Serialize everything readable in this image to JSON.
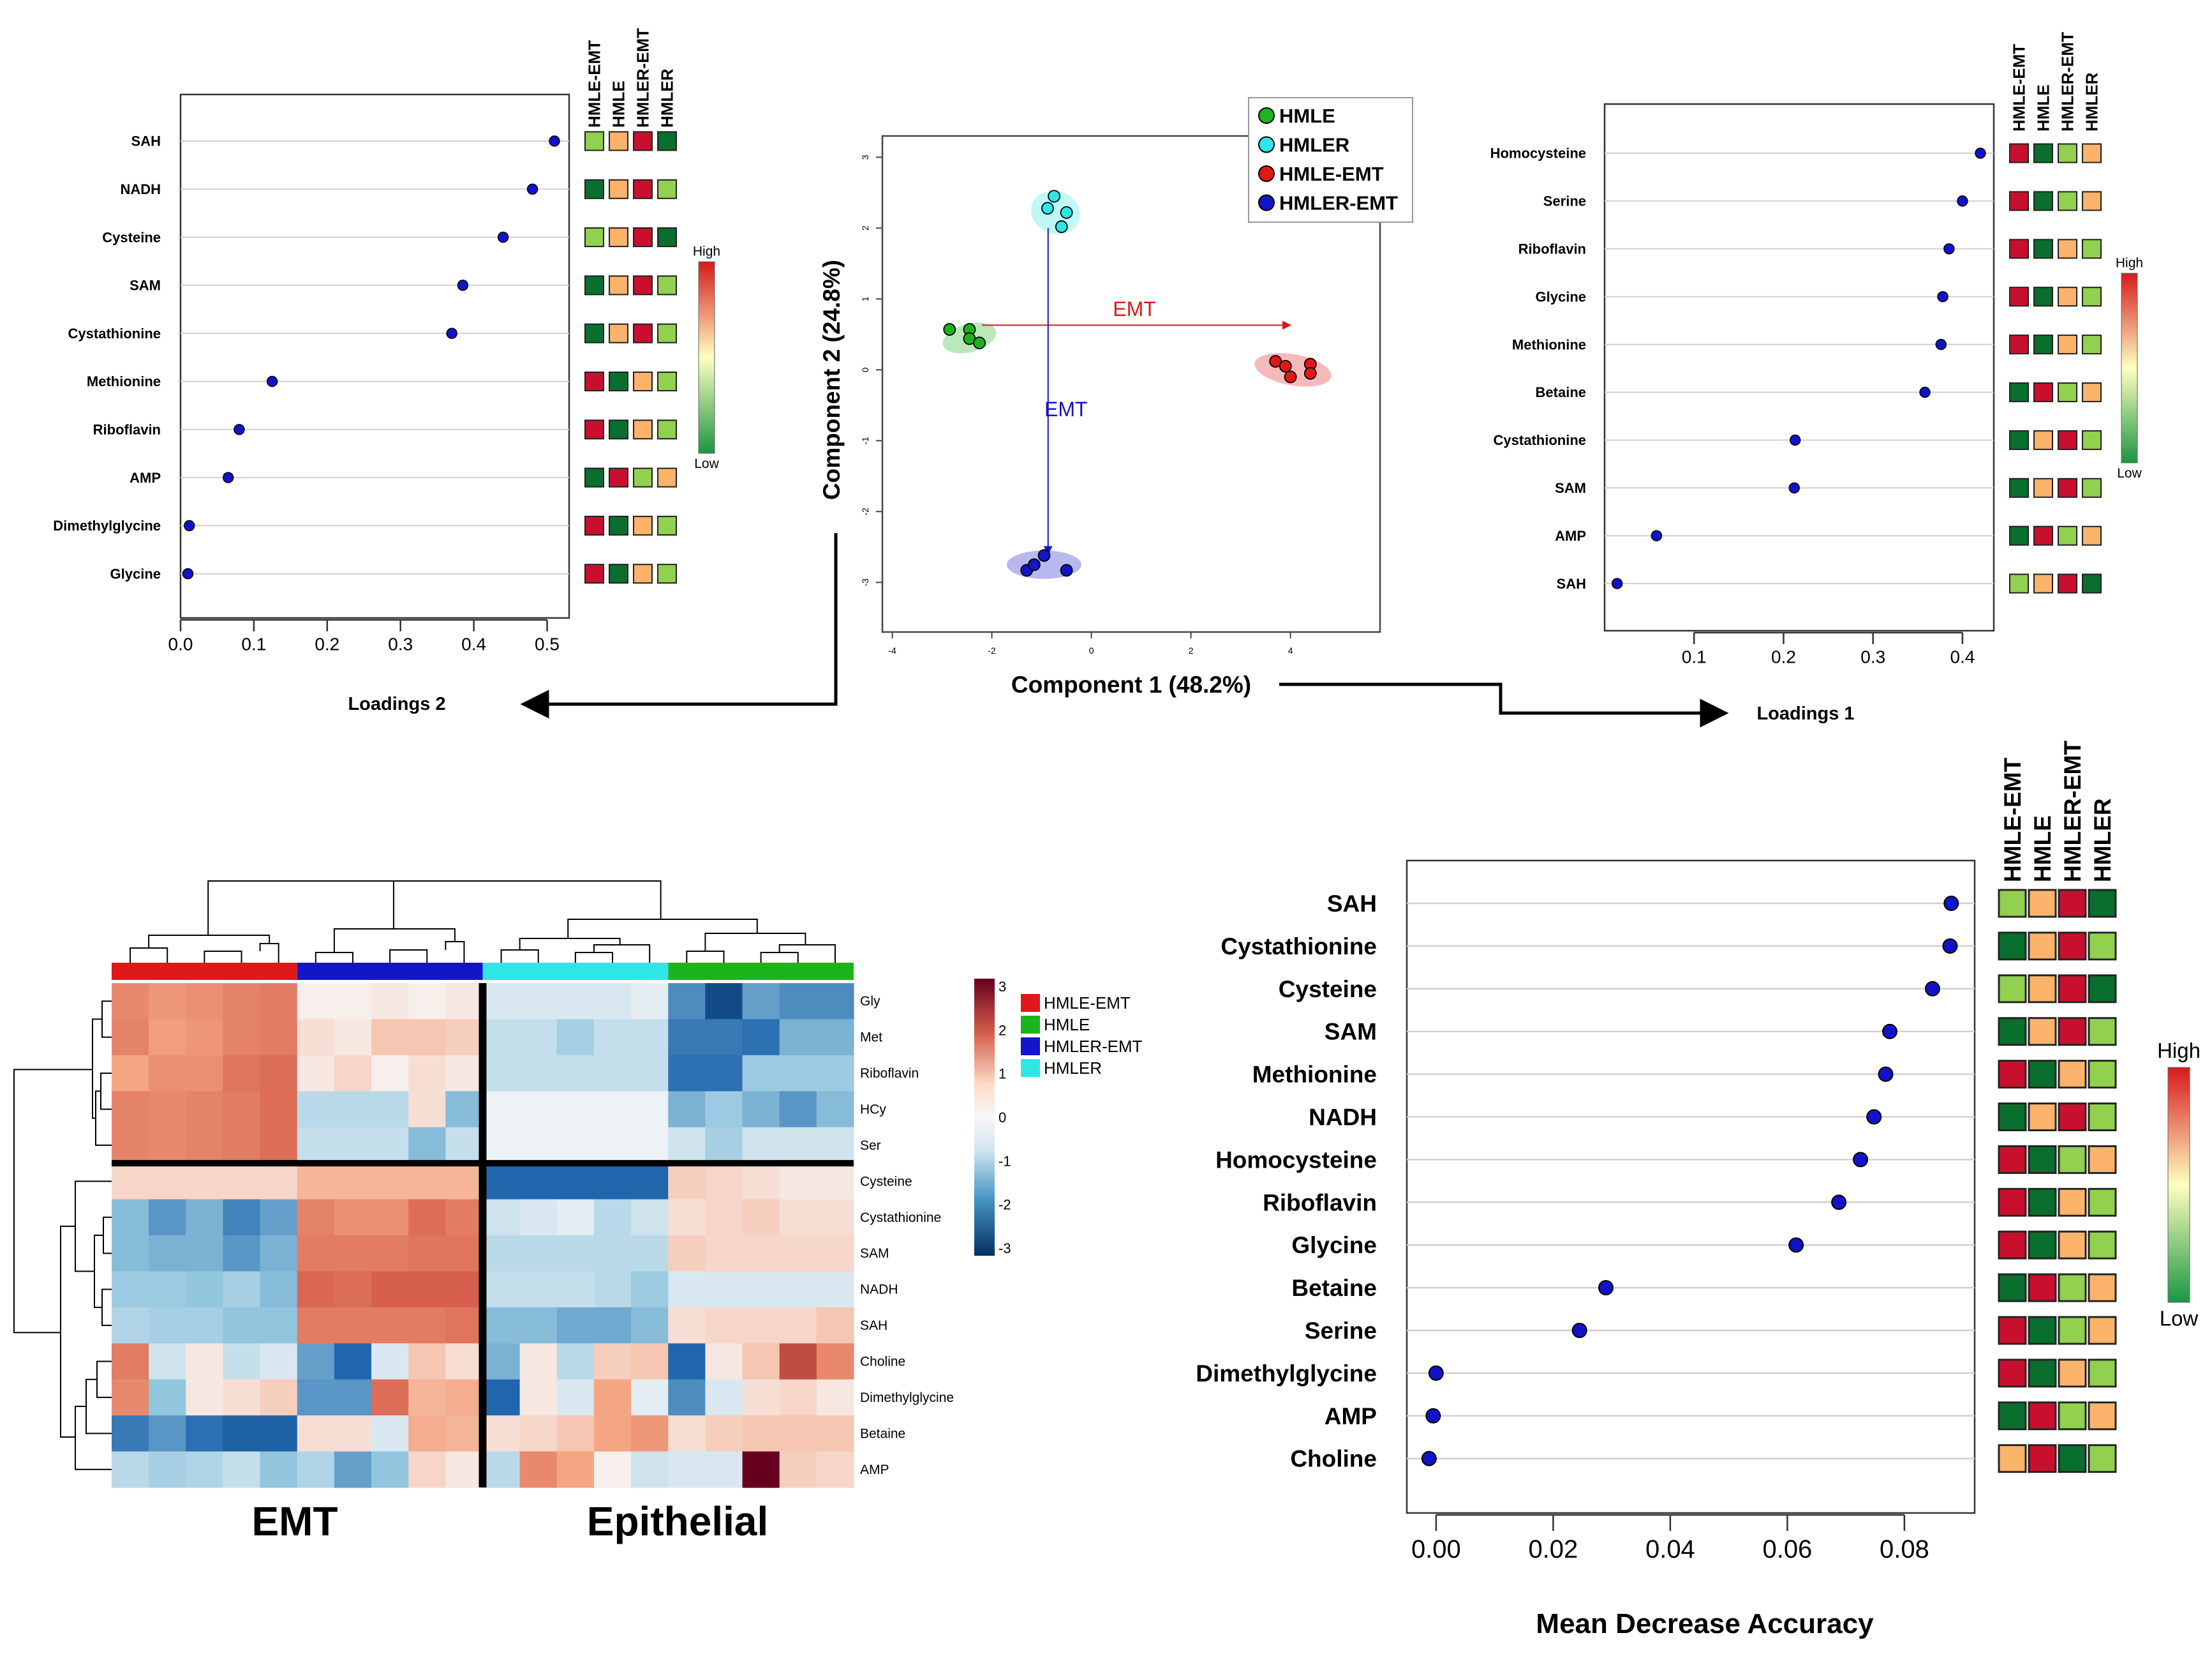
{
  "figure": {
    "group_colors": {
      "HMLE": "#1db31d",
      "HMLER": "#2ee6e6",
      "HMLE-EMT": "#e01818",
      "HMLER-EMT": "#1414c8"
    },
    "legend_high_label": "High",
    "legend_low_label": "Low"
  },
  "chart_data": [
    {
      "id": "loadings2",
      "type": "dot",
      "xlabel": "Loadings 2",
      "xlim": [
        0.0,
        0.53
      ],
      "xticks": [
        "0.0",
        "0.1",
        "0.2",
        "0.3",
        "0.4",
        "0.5"
      ],
      "tick_values": [
        0.0,
        0.1,
        0.2,
        0.3,
        0.4,
        0.5
      ],
      "column_labels": [
        "HMLE-EMT",
        "HMLE",
        "HMLER-EMT",
        "HMLER"
      ],
      "legend": {
        "high": "High",
        "low": "Low"
      },
      "items": [
        {
          "label": "SAH",
          "value": 0.51,
          "levels": [
            "lg",
            "or",
            "rd",
            "dg"
          ]
        },
        {
          "label": "NADH",
          "value": 0.48,
          "levels": [
            "dg",
            "or",
            "rd",
            "lg"
          ]
        },
        {
          "label": "Cysteine",
          "value": 0.44,
          "levels": [
            "lg",
            "or",
            "rd",
            "dg"
          ]
        },
        {
          "label": "SAM",
          "value": 0.385,
          "levels": [
            "dg",
            "or",
            "rd",
            "lg"
          ]
        },
        {
          "label": "Cystathionine",
          "value": 0.37,
          "levels": [
            "dg",
            "or",
            "rd",
            "lg"
          ]
        },
        {
          "label": "Methionine",
          "value": 0.125,
          "levels": [
            "rd",
            "dg",
            "or",
            "lg"
          ]
        },
        {
          "label": "Riboflavin",
          "value": 0.08,
          "levels": [
            "rd",
            "dg",
            "or",
            "lg"
          ]
        },
        {
          "label": "AMP",
          "value": 0.065,
          "levels": [
            "dg",
            "rd",
            "lg",
            "or"
          ]
        },
        {
          "label": "Dimethylglycine",
          "value": 0.012,
          "levels": [
            "rd",
            "dg",
            "or",
            "lg"
          ]
        },
        {
          "label": "Glycine",
          "value": 0.01,
          "levels": [
            "rd",
            "dg",
            "or",
            "lg"
          ]
        }
      ]
    },
    {
      "id": "pca",
      "type": "scatter",
      "xlabel": "Component 1 (48.2%)",
      "ylabel": "Component 2 (24.8%)",
      "xlim": [
        -4.2,
        5.8
      ],
      "ylim": [
        -3.7,
        3.3
      ],
      "xticks": [
        -4,
        -2,
        0,
        2,
        4
      ],
      "yticks": [
        3,
        2,
        1,
        0,
        -1,
        -2,
        -3
      ],
      "arrows": [
        {
          "label": "EMT",
          "from": [
            -2.2,
            0.63
          ],
          "to": [
            4.0,
            0.63
          ],
          "color": "#e01818"
        },
        {
          "label": "EMT",
          "from": [
            -0.87,
            2.0
          ],
          "to": [
            -0.87,
            -2.6
          ],
          "color": "#1414c8"
        }
      ],
      "series": [
        {
          "name": "HMLE",
          "color": "#1db31d",
          "ellipse": [
            -2.45,
            0.45,
            0.55,
            0.2,
            -15
          ],
          "points": [
            [
              -2.85,
              0.57
            ],
            [
              -2.45,
              0.57
            ],
            [
              -2.45,
              0.44
            ],
            [
              -2.25,
              0.38
            ]
          ]
        },
        {
          "name": "HMLER",
          "color": "#2ee6e6",
          "ellipse": [
            -0.72,
            2.22,
            0.5,
            0.3,
            20
          ],
          "points": [
            [
              -0.75,
              2.45
            ],
            [
              -0.88,
              2.28
            ],
            [
              -0.5,
              2.22
            ],
            [
              -0.6,
              2.02
            ]
          ]
        },
        {
          "name": "HMLE-EMT",
          "color": "#e01818",
          "ellipse": [
            4.05,
            0.0,
            0.78,
            0.22,
            10
          ],
          "points": [
            [
              3.7,
              0.12
            ],
            [
              3.9,
              0.05
            ],
            [
              4.0,
              -0.1
            ],
            [
              4.4,
              0.08
            ],
            [
              4.4,
              -0.05
            ]
          ]
        },
        {
          "name": "HMLER-EMT",
          "color": "#1414c8",
          "ellipse": [
            -0.95,
            -2.75,
            0.75,
            0.2,
            0
          ],
          "points": [
            [
              -1.3,
              -2.83
            ],
            [
              -1.15,
              -2.75
            ],
            [
              -0.95,
              -2.62
            ],
            [
              -0.5,
              -2.83
            ]
          ]
        }
      ]
    },
    {
      "id": "loadings1",
      "type": "dot",
      "xlabel": "Loadings 1",
      "xlim": [
        0.0,
        0.435
      ],
      "xticks": [
        "0.1",
        "0.2",
        "0.3",
        "0.4"
      ],
      "tick_values": [
        0.1,
        0.2,
        0.3,
        0.4
      ],
      "column_labels": [
        "HMLE-EMT",
        "HMLE",
        "HMLER-EMT",
        "HMLER"
      ],
      "legend": {
        "high": "High",
        "low": "Low"
      },
      "items": [
        {
          "label": "Homocysteine",
          "value": 0.42,
          "levels": [
            "rd",
            "dg",
            "lg",
            "or"
          ]
        },
        {
          "label": "Serine",
          "value": 0.4,
          "levels": [
            "rd",
            "dg",
            "lg",
            "or"
          ]
        },
        {
          "label": "Riboflavin",
          "value": 0.385,
          "levels": [
            "rd",
            "dg",
            "or",
            "lg"
          ]
        },
        {
          "label": "Glycine",
          "value": 0.378,
          "levels": [
            "rd",
            "dg",
            "or",
            "lg"
          ]
        },
        {
          "label": "Methionine",
          "value": 0.376,
          "levels": [
            "rd",
            "dg",
            "or",
            "lg"
          ]
        },
        {
          "label": "Betaine",
          "value": 0.358,
          "levels": [
            "dg",
            "rd",
            "lg",
            "or"
          ]
        },
        {
          "label": "Cystathionine",
          "value": 0.213,
          "levels": [
            "dg",
            "or",
            "rd",
            "lg"
          ]
        },
        {
          "label": "SAM",
          "value": 0.212,
          "levels": [
            "dg",
            "or",
            "rd",
            "lg"
          ]
        },
        {
          "label": "AMP",
          "value": 0.058,
          "levels": [
            "dg",
            "rd",
            "lg",
            "or"
          ]
        },
        {
          "label": "SAH",
          "value": 0.014,
          "levels": [
            "lg",
            "or",
            "rd",
            "dg"
          ]
        }
      ]
    },
    {
      "id": "heatmap",
      "type": "heatmap",
      "rows": [
        "Gly",
        "Met",
        "Riboflavin",
        "HCy",
        "Ser",
        "Cysteine",
        "Cystathionine",
        "SAM",
        "NADH",
        "SAH",
        "Choline",
        "Dimethylglycine",
        "Betaine",
        "AMP"
      ],
      "column_groups": [
        "HMLE-EMT",
        "HMLER-EMT",
        "HMLER",
        "HMLE"
      ],
      "legend_groups": [
        "HMLE-EMT",
        "HMLE",
        "HMLER-EMT",
        "HMLER"
      ],
      "colorbar": {
        "min": -3,
        "max": 3,
        "ticks": [
          3,
          2,
          1,
          0,
          -1,
          -2,
          -3
        ]
      },
      "group_labels": [
        "EMT",
        "Epithelial"
      ],
      "values": [
        [
          1.4,
          1.2,
          1.3,
          1.5,
          1.6,
          0.1,
          0.1,
          0.2,
          0.1,
          0.2,
          -0.3,
          -0.3,
          -0.3,
          -0.3,
          -0.2,
          -1.6,
          -2.5,
          -1.4,
          -1.6,
          -1.6
        ],
        [
          1.5,
          1.1,
          1.2,
          1.5,
          1.6,
          0.3,
          0.2,
          0.6,
          0.6,
          0.5,
          -0.5,
          -0.5,
          -0.8,
          -0.5,
          -0.5,
          -1.8,
          -1.8,
          -1.9,
          -1.2,
          -1.2
        ],
        [
          1.0,
          1.3,
          1.3,
          1.7,
          1.8,
          0.2,
          0.4,
          0.1,
          0.3,
          0.2,
          -0.5,
          -0.5,
          -0.5,
          -0.5,
          -0.5,
          -1.9,
          -1.9,
          -0.9,
          -0.9,
          -0.9
        ],
        [
          1.5,
          1.4,
          1.5,
          1.6,
          1.8,
          -0.6,
          -0.6,
          -0.6,
          0.3,
          -1.1,
          -0.1,
          -0.1,
          -0.1,
          -0.1,
          -0.1,
          -1.2,
          -0.9,
          -1.2,
          -1.5,
          -1.1
        ],
        [
          1.5,
          1.4,
          1.5,
          1.6,
          1.8,
          -0.5,
          -0.5,
          -0.5,
          -1.1,
          -0.5,
          -0.1,
          -0.1,
          -0.1,
          -0.1,
          -0.1,
          -0.4,
          -0.8,
          -0.4,
          -0.4,
          -0.4
        ],
        [
          0.4,
          0.4,
          0.4,
          0.4,
          0.4,
          0.8,
          0.8,
          0.8,
          0.8,
          0.8,
          -2.0,
          -2.0,
          -2.0,
          -2.0,
          -2.0,
          0.5,
          0.4,
          0.3,
          0.2,
          0.2
        ],
        [
          -1.1,
          -1.5,
          -1.2,
          -1.7,
          -1.4,
          1.5,
          1.3,
          1.3,
          1.8,
          1.6,
          -0.4,
          -0.3,
          -0.2,
          -0.6,
          -0.4,
          0.3,
          0.4,
          0.5,
          0.3,
          0.3
        ],
        [
          -1.1,
          -1.2,
          -1.2,
          -1.5,
          -1.2,
          1.6,
          1.6,
          1.6,
          1.7,
          1.7,
          -0.6,
          -0.6,
          -0.6,
          -0.6,
          -0.6,
          0.5,
          0.4,
          0.4,
          0.4,
          0.4
        ],
        [
          -0.9,
          -0.9,
          -1.0,
          -0.8,
          -1.1,
          1.9,
          1.8,
          2.0,
          2.0,
          2.0,
          -0.5,
          -0.5,
          -0.5,
          -0.6,
          -0.9,
          -0.3,
          -0.3,
          -0.3,
          -0.3,
          -0.3
        ],
        [
          -0.7,
          -0.8,
          -0.8,
          -1.0,
          -1.0,
          1.6,
          1.6,
          1.6,
          1.6,
          1.7,
          -1.1,
          -1.1,
          -1.3,
          -1.3,
          -1.1,
          0.3,
          0.4,
          0.4,
          0.4,
          0.6
        ],
        [
          1.6,
          -0.4,
          0.2,
          -0.5,
          -0.3,
          -1.4,
          -2.0,
          -0.3,
          0.6,
          0.3,
          -1.2,
          0.2,
          -0.6,
          0.5,
          0.6,
          -2.0,
          0.2,
          0.6,
          2.2,
          1.4
        ],
        [
          1.4,
          -1.0,
          0.2,
          0.3,
          0.5,
          -1.5,
          -1.5,
          1.8,
          0.8,
          0.9,
          -2.0,
          0.2,
          -0.3,
          1.0,
          -0.2,
          -1.6,
          -0.3,
          0.3,
          0.4,
          0.2
        ],
        [
          -1.8,
          -1.5,
          -1.9,
          -2.1,
          -2.1,
          0.3,
          0.3,
          -0.3,
          0.9,
          0.8,
          0.3,
          0.4,
          0.6,
          1.0,
          1.2,
          0.3,
          0.5,
          0.6,
          0.6,
          0.6
        ],
        [
          -0.6,
          -0.8,
          -0.7,
          -0.5,
          -1.0,
          -0.7,
          -1.4,
          -1.0,
          0.4,
          0.2,
          -0.6,
          1.4,
          1.0,
          0.1,
          -0.4,
          -0.3,
          -0.3,
          3.0,
          0.5,
          0.4
        ]
      ]
    },
    {
      "id": "mda",
      "type": "dot",
      "xlabel": "Mean Decrease Accuracy",
      "xlim": [
        -0.005,
        0.092
      ],
      "xticks": [
        "0.00",
        "0.02",
        "0.04",
        "0.06",
        "0.08"
      ],
      "tick_values": [
        0.0,
        0.02,
        0.04,
        0.06,
        0.08
      ],
      "column_labels": [
        "HMLE-EMT",
        "HMLE",
        "HMLER-EMT",
        "HMLER"
      ],
      "legend": {
        "high": "High",
        "low": "Low"
      },
      "items": [
        {
          "label": "SAH",
          "value": 0.088,
          "levels": [
            "lg",
            "or",
            "rd",
            "dg"
          ]
        },
        {
          "label": "Cystathionine",
          "value": 0.0878,
          "levels": [
            "dg",
            "or",
            "rd",
            "lg"
          ]
        },
        {
          "label": "Cysteine",
          "value": 0.0848,
          "levels": [
            "lg",
            "or",
            "rd",
            "dg"
          ]
        },
        {
          "label": "SAM",
          "value": 0.0775,
          "levels": [
            "dg",
            "or",
            "rd",
            "lg"
          ]
        },
        {
          "label": "Methionine",
          "value": 0.0768,
          "levels": [
            "rd",
            "dg",
            "or",
            "lg"
          ]
        },
        {
          "label": "NADH",
          "value": 0.0748,
          "levels": [
            "dg",
            "or",
            "rd",
            "lg"
          ]
        },
        {
          "label": "Homocysteine",
          "value": 0.0725,
          "levels": [
            "rd",
            "dg",
            "lg",
            "or"
          ]
        },
        {
          "label": "Riboflavin",
          "value": 0.0688,
          "levels": [
            "rd",
            "dg",
            "or",
            "lg"
          ]
        },
        {
          "label": "Glycine",
          "value": 0.0615,
          "levels": [
            "rd",
            "dg",
            "or",
            "lg"
          ]
        },
        {
          "label": "Betaine",
          "value": 0.029,
          "levels": [
            "dg",
            "rd",
            "lg",
            "or"
          ]
        },
        {
          "label": "Serine",
          "value": 0.0245,
          "levels": [
            "rd",
            "dg",
            "lg",
            "or"
          ]
        },
        {
          "label": "Dimethylglycine",
          "value": 0.0,
          "levels": [
            "rd",
            "dg",
            "or",
            "lg"
          ]
        },
        {
          "label": "AMP",
          "value": -0.0005,
          "levels": [
            "dg",
            "rd",
            "lg",
            "or"
          ]
        },
        {
          "label": "Choline",
          "value": -0.0012,
          "levels": [
            "or",
            "rd",
            "dg",
            "lg"
          ]
        }
      ]
    }
  ]
}
